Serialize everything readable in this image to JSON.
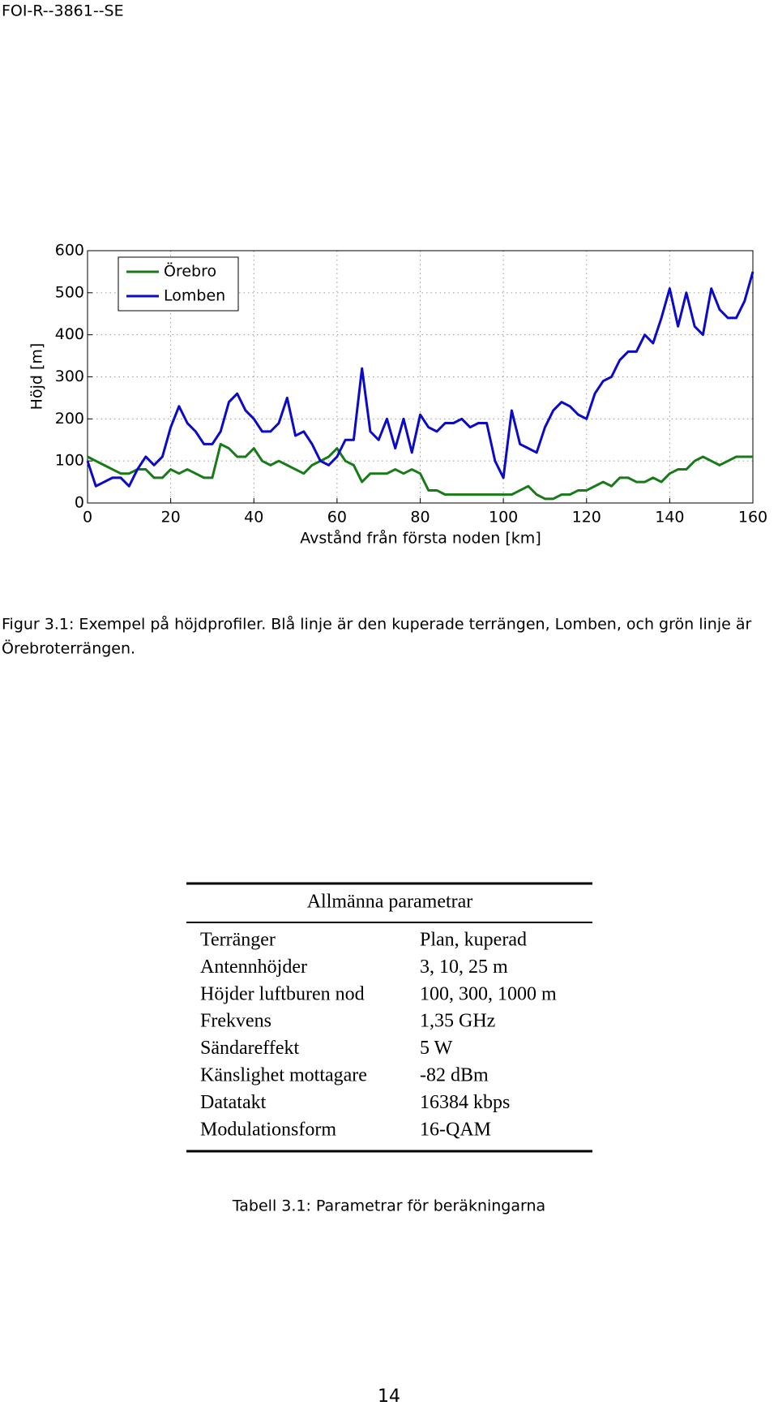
{
  "header": {
    "report_id": "FOI-R--3861--SE"
  },
  "chart_data": {
    "type": "line",
    "x_label": "Avstånd från första noden [km]",
    "y_label": "Höjd [m]",
    "x": [
      0,
      2,
      4,
      6,
      8,
      10,
      12,
      14,
      16,
      18,
      20,
      22,
      24,
      26,
      28,
      30,
      32,
      34,
      36,
      38,
      40,
      42,
      44,
      46,
      48,
      50,
      52,
      54,
      56,
      58,
      60,
      62,
      64,
      66,
      68,
      70,
      72,
      74,
      76,
      78,
      80,
      82,
      84,
      86,
      88,
      90,
      92,
      94,
      96,
      98,
      100,
      102,
      104,
      106,
      108,
      110,
      112,
      114,
      116,
      118,
      120,
      122,
      124,
      126,
      128,
      130,
      132,
      134,
      136,
      138,
      140,
      142,
      144,
      146,
      148,
      150,
      152,
      154,
      156,
      158,
      160
    ],
    "series": [
      {
        "name": "Örebro",
        "color": "#187a18",
        "values": [
          110,
          100,
          90,
          80,
          70,
          70,
          80,
          80,
          60,
          60,
          80,
          70,
          80,
          70,
          60,
          60,
          140,
          130,
          110,
          110,
          130,
          100,
          90,
          100,
          90,
          80,
          70,
          90,
          100,
          110,
          130,
          100,
          90,
          50,
          70,
          70,
          70,
          80,
          70,
          80,
          70,
          30,
          30,
          20,
          20,
          20,
          20,
          20,
          20,
          20,
          20,
          20,
          30,
          40,
          20,
          10,
          10,
          20,
          20,
          30,
          30,
          40,
          50,
          40,
          60,
          60,
          50,
          50,
          60,
          50,
          70,
          80,
          80,
          100,
          110,
          100,
          90,
          100,
          110,
          110,
          110
        ]
      },
      {
        "name": "Lomben",
        "color": "#0a0ac8",
        "values": [
          100,
          40,
          50,
          60,
          60,
          40,
          80,
          110,
          90,
          110,
          180,
          230,
          190,
          170,
          140,
          140,
          170,
          240,
          260,
          220,
          200,
          170,
          170,
          190,
          250,
          160,
          170,
          140,
          100,
          90,
          110,
          150,
          150,
          320,
          170,
          150,
          200,
          130,
          200,
          120,
          210,
          180,
          170,
          190,
          190,
          200,
          180,
          190,
          190,
          100,
          60,
          220,
          140,
          130,
          120,
          180,
          220,
          240,
          230,
          210,
          200,
          260,
          290,
          300,
          340,
          360,
          360,
          400,
          380,
          440,
          510,
          420,
          500,
          420,
          400,
          510,
          460,
          440,
          440,
          480,
          550
        ]
      }
    ],
    "xlim": [
      0,
      160
    ],
    "ylim": [
      0,
      600
    ],
    "xticks": [
      0,
      20,
      40,
      60,
      80,
      100,
      120,
      140,
      160
    ],
    "yticks": [
      0,
      100,
      200,
      300,
      400,
      500,
      600
    ],
    "grid": true,
    "legend": "upper left"
  },
  "figure_caption": {
    "line1": "Figur 3.1: Exempel på höjdprofiler. Blå linje är den kuperade terrängen, Lomben, och grön linje är",
    "line2": "Örebroterrängen."
  },
  "table": {
    "title": "Allmänna parametrar",
    "rows": [
      [
        "Terränger",
        "Plan, kuperad"
      ],
      [
        "Antennhöjder",
        "3, 10, 25 m"
      ],
      [
        "Höjder luftburen nod",
        "100, 300, 1000 m"
      ],
      [
        "Frekvens",
        "1,35 GHz"
      ],
      [
        "Sändareffekt",
        "5 W"
      ],
      [
        "Känslighet mottagare",
        "-82 dBm"
      ],
      [
        "Datatakt",
        "16384 kbps"
      ],
      [
        "Modulationsform",
        "16-QAM"
      ]
    ]
  },
  "table_caption": "Tabell 3.1: Parametrar för beräkningarna",
  "page_number": "14"
}
